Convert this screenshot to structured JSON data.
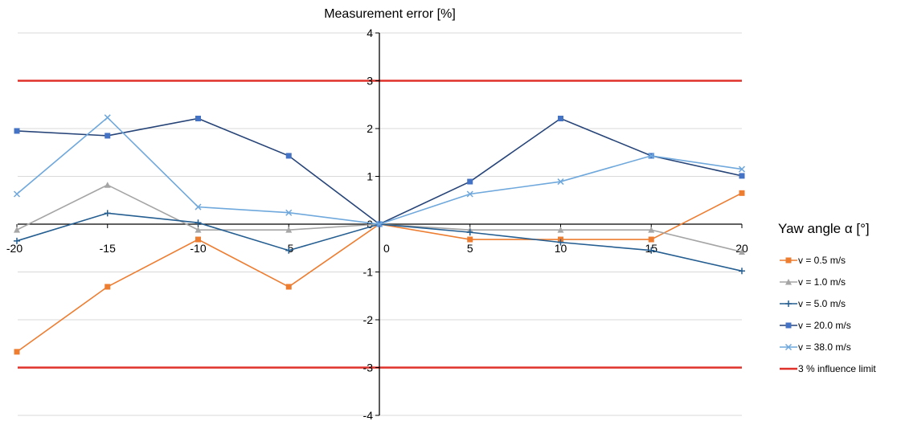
{
  "chart_data": {
    "type": "line",
    "title": "Measurement error [%]",
    "xlabel": "Yaw angle α [°]",
    "ylabel": "",
    "xlim": [
      -20,
      20
    ],
    "ylim": [
      -4,
      4
    ],
    "x_ticks": [
      -20,
      -15,
      -10,
      -5,
      0,
      5,
      10,
      15,
      20
    ],
    "y_ticks": [
      -4,
      -3,
      -2,
      -1,
      0,
      1,
      2,
      3,
      4
    ],
    "grid": true,
    "legend_position": "right",
    "series": [
      {
        "name": "v = 0.5 m/s",
        "color": "#ED7D31",
        "marker": "square",
        "x": [
          -20,
          -15,
          -10,
          -5,
          0,
          5,
          10,
          15,
          20
        ],
        "values": [
          -2.67,
          -1.31,
          -0.32,
          -1.31,
          0,
          -0.32,
          -0.32,
          -0.32,
          0.65
        ]
      },
      {
        "name": "v = 1.0 m/s",
        "color": "#A5A5A5",
        "marker": "triangle",
        "x": [
          -20,
          -15,
          -10,
          -5,
          0,
          5,
          10,
          15,
          20
        ],
        "values": [
          -0.12,
          0.82,
          -0.12,
          -0.12,
          0,
          -0.12,
          -0.12,
          -0.12,
          -0.58
        ]
      },
      {
        "name": "v = 5.0 m/s",
        "color": "#255E91",
        "marker": "plus",
        "x": [
          -20,
          -15,
          -10,
          -5,
          0,
          5,
          10,
          15,
          20
        ],
        "values": [
          -0.35,
          0.23,
          0.03,
          -0.55,
          0,
          -0.17,
          -0.38,
          -0.55,
          -0.98
        ]
      },
      {
        "name": "v = 20.0 m/s",
        "color": "#264478",
        "marker": "square-blue",
        "x": [
          -20,
          -15,
          -10,
          -5,
          0,
          5,
          10,
          15,
          20
        ],
        "values": [
          1.95,
          1.85,
          2.21,
          1.43,
          0,
          0.89,
          2.21,
          1.43,
          1.01
        ]
      },
      {
        "name": "v = 38.0 m/s",
        "color": "#6FA8DC",
        "marker": "x",
        "x": [
          -20,
          -15,
          -10,
          -5,
          0,
          5,
          10,
          15,
          20
        ],
        "values": [
          0.63,
          2.23,
          0.36,
          0.24,
          0,
          0.63,
          0.89,
          1.43,
          1.15
        ]
      }
    ],
    "limit": {
      "name": "3 % influence limit",
      "color": "#E0302A",
      "values": [
        3,
        -3
      ]
    }
  }
}
